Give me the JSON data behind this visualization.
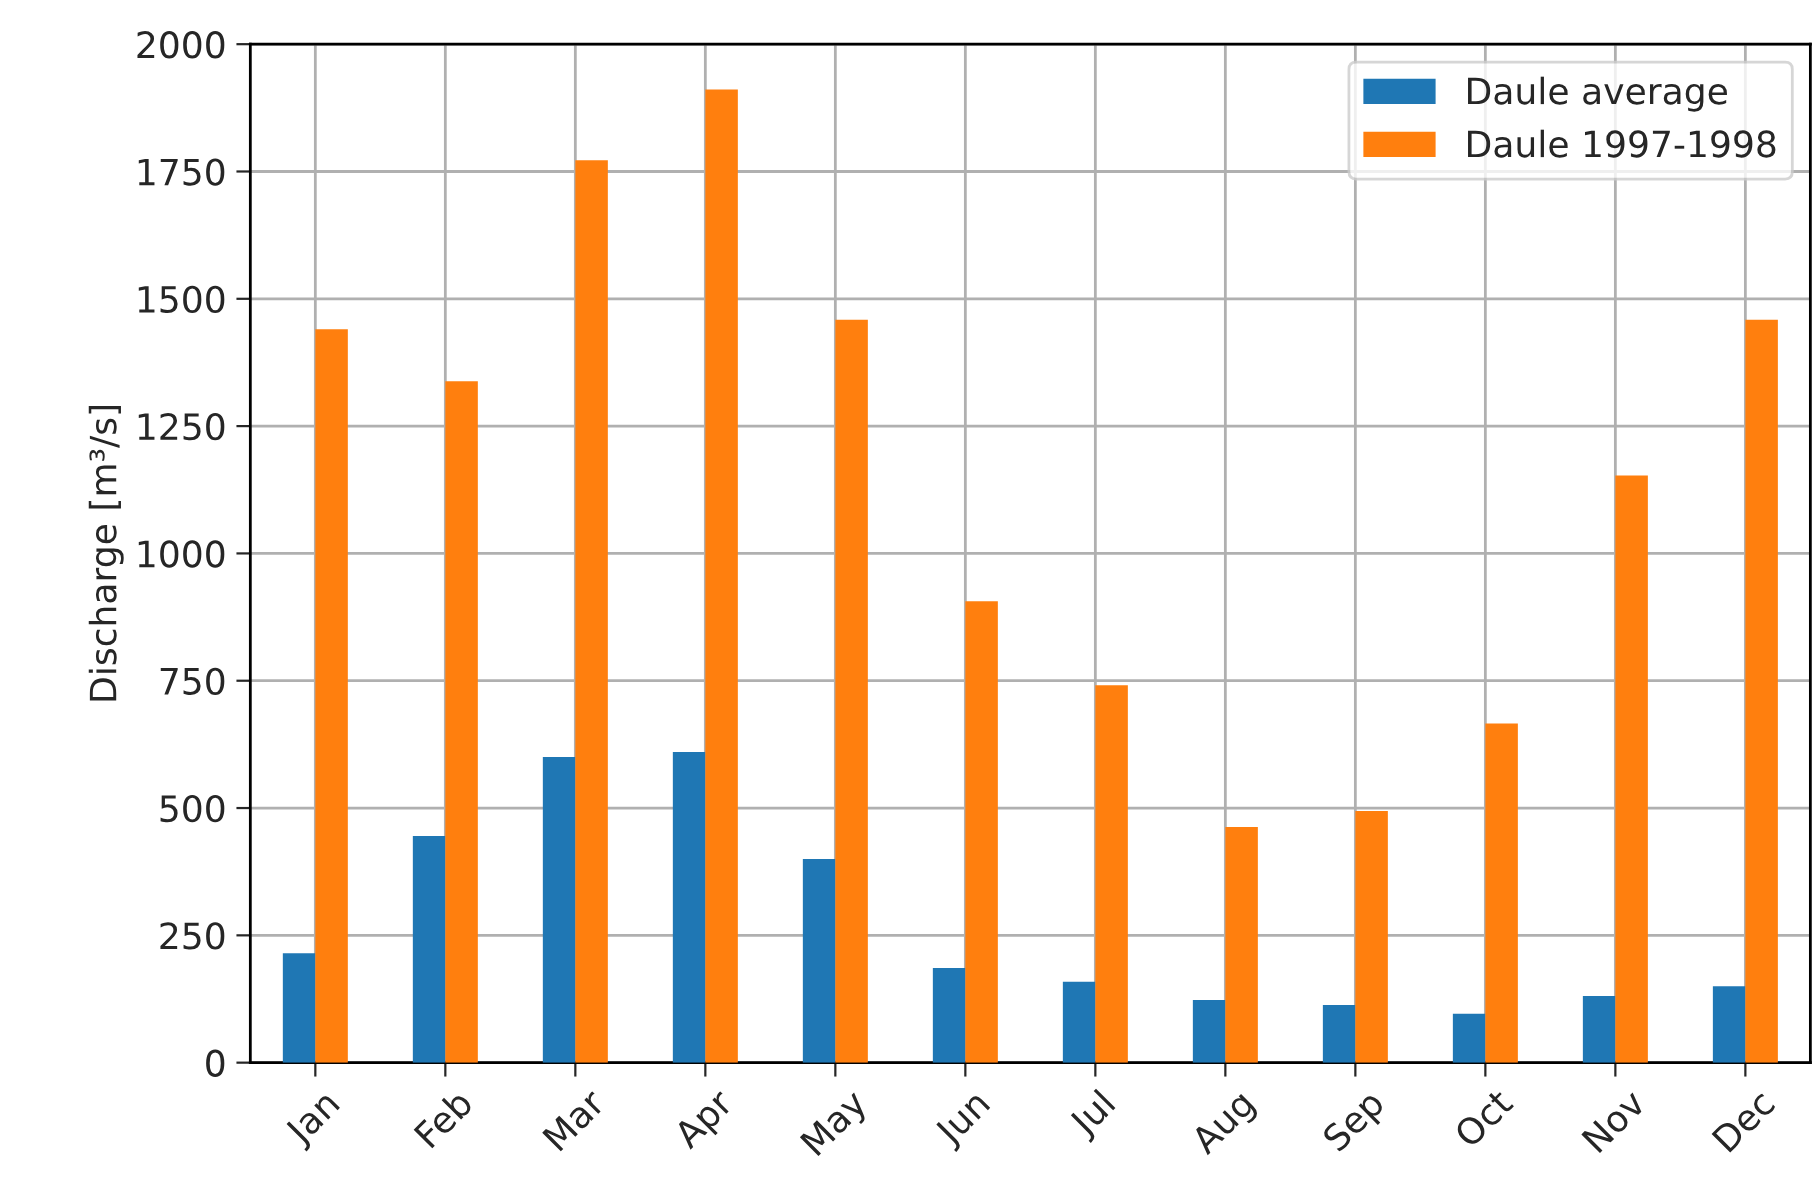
{
  "chart_data": {
    "type": "bar",
    "ylabel": "Discharge [m³/s]",
    "categories": [
      "Jan",
      "Feb",
      "Mar",
      "Apr",
      "May",
      "Jun",
      "Jul",
      "Aug",
      "Sep",
      "Oct",
      "Nov",
      "Dec"
    ],
    "series": [
      {
        "name": "Daule average",
        "color": "#1f77b4",
        "values": [
          215,
          445,
          600,
          610,
          400,
          186,
          159,
          123,
          113,
          96,
          131,
          150
        ]
      },
      {
        "name": "Daule 1997-1998",
        "color": "#ff7f0e",
        "values": [
          1440,
          1338,
          1772,
          1911,
          1459,
          906,
          741,
          463,
          494,
          666,
          1153,
          1459
        ]
      }
    ],
    "ylim": [
      0,
      2000
    ],
    "yticks": [
      0,
      250,
      500,
      750,
      1000,
      1250,
      1500,
      1750,
      2000
    ],
    "grid": true,
    "legend": "top right"
  }
}
